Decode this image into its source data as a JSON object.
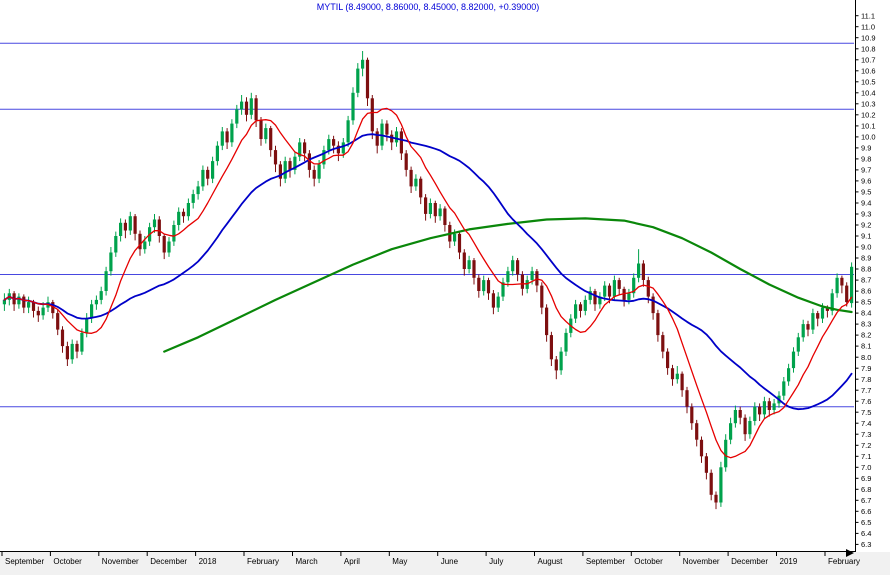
{
  "title": "MYTIL (8.49000, 8.86000, 8.45000, 8.82000, +0.39000)",
  "chart_data": {
    "type": "candlestick",
    "symbol": "MYTIL",
    "quote": {
      "open": 8.49,
      "high": 8.86,
      "low": 8.45,
      "close": 8.82,
      "change": 0.39
    },
    "y_axis": {
      "min": 6.3,
      "max": 11.1,
      "step": 0.1,
      "side": "right"
    },
    "x_axis": {
      "ticks": [
        {
          "index": 0,
          "label": "September"
        },
        {
          "index": 10,
          "label": "October"
        },
        {
          "index": 20,
          "label": "November"
        },
        {
          "index": 30,
          "label": "December"
        },
        {
          "index": 40,
          "label": "2018"
        },
        {
          "index": 50,
          "label": "February"
        },
        {
          "index": 60,
          "label": "March"
        },
        {
          "index": 70,
          "label": "April"
        },
        {
          "index": 80,
          "label": "May"
        },
        {
          "index": 90,
          "label": "June"
        },
        {
          "index": 100,
          "label": "July"
        },
        {
          "index": 110,
          "label": "August"
        },
        {
          "index": 120,
          "label": "September"
        },
        {
          "index": 130,
          "label": "October"
        },
        {
          "index": 140,
          "label": "November"
        },
        {
          "index": 150,
          "label": "December"
        },
        {
          "index": 160,
          "label": "2019"
        },
        {
          "index": 170,
          "label": "February"
        }
      ]
    },
    "horizontal_lines": {
      "color": "#4848e0",
      "values": [
        10.85,
        10.25,
        8.75,
        7.55
      ]
    },
    "colors": {
      "up": "#00a24c",
      "down": "#7d0f10",
      "background": "#ffffff",
      "axis": "#000000",
      "title": "#0000d8"
    },
    "grid": "off",
    "legend": "none",
    "candles": {
      "columns": [
        "open",
        "high",
        "low",
        "close"
      ],
      "rows": [
        [
          8.48,
          8.58,
          8.42,
          8.52
        ],
        [
          8.52,
          8.62,
          8.47,
          8.58
        ],
        [
          8.58,
          8.6,
          8.42,
          8.48
        ],
        [
          8.48,
          8.58,
          8.44,
          8.55
        ],
        [
          8.55,
          8.57,
          8.4,
          8.45
        ],
        [
          8.45,
          8.55,
          8.4,
          8.5
        ],
        [
          8.5,
          8.52,
          8.36,
          8.42
        ],
        [
          8.42,
          8.46,
          8.32,
          8.38
        ],
        [
          8.38,
          8.5,
          8.34,
          8.45
        ],
        [
          8.45,
          8.55,
          8.41,
          8.5
        ],
        [
          8.5,
          8.52,
          8.35,
          8.4
        ],
        [
          8.4,
          8.43,
          8.2,
          8.25
        ],
        [
          8.25,
          8.28,
          8.04,
          8.1
        ],
        [
          8.1,
          8.14,
          7.92,
          7.98
        ],
        [
          7.98,
          8.16,
          7.94,
          8.12
        ],
        [
          8.12,
          8.15,
          7.99,
          8.05
        ],
        [
          8.05,
          8.26,
          8.02,
          8.22
        ],
        [
          8.22,
          8.4,
          8.18,
          8.35
        ],
        [
          8.35,
          8.52,
          8.31,
          8.48
        ],
        [
          8.48,
          8.56,
          8.43,
          8.52
        ],
        [
          8.52,
          8.64,
          8.48,
          8.6
        ],
        [
          8.6,
          8.82,
          8.56,
          8.78
        ],
        [
          8.78,
          9.0,
          8.74,
          8.95
        ],
        [
          8.95,
          9.14,
          8.91,
          9.1
        ],
        [
          9.1,
          9.26,
          9.05,
          9.22
        ],
        [
          9.22,
          9.25,
          9.08,
          9.15
        ],
        [
          9.15,
          9.32,
          9.11,
          9.28
        ],
        [
          9.28,
          9.3,
          9.06,
          9.12
        ],
        [
          9.12,
          9.15,
          8.92,
          8.98
        ],
        [
          8.98,
          9.1,
          8.94,
          9.05
        ],
        [
          9.05,
          9.22,
          9.01,
          9.18
        ],
        [
          9.18,
          9.3,
          9.13,
          9.25
        ],
        [
          9.25,
          9.28,
          9.04,
          9.1
        ],
        [
          9.1,
          9.12,
          8.89,
          8.95
        ],
        [
          8.95,
          9.09,
          8.91,
          9.05
        ],
        [
          9.05,
          9.24,
          9.01,
          9.2
        ],
        [
          9.2,
          9.36,
          9.15,
          9.32
        ],
        [
          9.32,
          9.35,
          9.22,
          9.28
        ],
        [
          9.28,
          9.44,
          9.24,
          9.4
        ],
        [
          9.4,
          9.52,
          9.35,
          9.48
        ],
        [
          9.48,
          9.6,
          9.43,
          9.55
        ],
        [
          9.55,
          9.74,
          9.51,
          9.7
        ],
        [
          9.7,
          9.73,
          9.56,
          9.62
        ],
        [
          9.62,
          9.82,
          9.58,
          9.78
        ],
        [
          9.78,
          9.96,
          9.74,
          9.92
        ],
        [
          9.92,
          10.09,
          9.88,
          10.05
        ],
        [
          10.05,
          10.08,
          9.89,
          9.95
        ],
        [
          9.95,
          10.16,
          9.91,
          10.12
        ],
        [
          10.12,
          10.29,
          10.08,
          10.25
        ],
        [
          10.25,
          10.38,
          10.2,
          10.32
        ],
        [
          10.32,
          10.36,
          10.14,
          10.2
        ],
        [
          10.2,
          10.4,
          10.16,
          10.35
        ],
        [
          10.35,
          10.38,
          10.09,
          10.15
        ],
        [
          10.15,
          10.18,
          9.92,
          9.98
        ],
        [
          9.98,
          10.12,
          9.94,
          10.08
        ],
        [
          10.08,
          10.1,
          9.82,
          9.88
        ],
        [
          9.88,
          9.92,
          9.68,
          9.75
        ],
        [
          9.75,
          9.78,
          9.55,
          9.62
        ],
        [
          9.62,
          9.82,
          9.58,
          9.78
        ],
        [
          9.78,
          9.81,
          9.63,
          9.7
        ],
        [
          9.7,
          9.86,
          9.66,
          9.82
        ],
        [
          9.82,
          9.99,
          9.78,
          9.95
        ],
        [
          9.95,
          9.98,
          9.78,
          9.85
        ],
        [
          9.85,
          9.88,
          9.63,
          9.7
        ],
        [
          9.7,
          9.74,
          9.55,
          9.62
        ],
        [
          9.62,
          9.79,
          9.58,
          9.75
        ],
        [
          9.75,
          9.92,
          9.71,
          9.88
        ],
        [
          9.88,
          10.02,
          9.84,
          9.98
        ],
        [
          9.98,
          10.01,
          9.85,
          9.92
        ],
        [
          9.92,
          9.96,
          9.78,
          9.85
        ],
        [
          9.85,
          9.99,
          9.81,
          9.95
        ],
        [
          9.95,
          10.19,
          9.91,
          10.15
        ],
        [
          10.15,
          10.45,
          10.11,
          10.4
        ],
        [
          10.4,
          10.67,
          10.36,
          10.62
        ],
        [
          10.62,
          10.78,
          10.55,
          10.7
        ],
        [
          10.7,
          10.72,
          10.28,
          10.35
        ],
        [
          10.35,
          10.38,
          9.98,
          10.05
        ],
        [
          10.05,
          10.08,
          9.85,
          9.92
        ],
        [
          9.92,
          10.16,
          9.88,
          10.12
        ],
        [
          10.12,
          10.15,
          9.96,
          10.02
        ],
        [
          10.02,
          10.06,
          9.88,
          9.95
        ],
        [
          9.95,
          10.09,
          9.91,
          10.05
        ],
        [
          10.05,
          10.08,
          9.79,
          9.85
        ],
        [
          9.85,
          9.88,
          9.64,
          9.7
        ],
        [
          9.7,
          9.73,
          9.49,
          9.55
        ],
        [
          9.55,
          9.66,
          9.51,
          9.62
        ],
        [
          9.62,
          9.64,
          9.39,
          9.45
        ],
        [
          9.45,
          9.48,
          9.24,
          9.3
        ],
        [
          9.3,
          9.44,
          9.26,
          9.4
        ],
        [
          9.4,
          9.42,
          9.22,
          9.28
        ],
        [
          9.28,
          9.39,
          9.24,
          9.35
        ],
        [
          9.35,
          9.37,
          9.14,
          9.2
        ],
        [
          9.2,
          9.23,
          8.99,
          9.05
        ],
        [
          9.05,
          9.16,
          9.01,
          9.12
        ],
        [
          9.12,
          9.14,
          8.89,
          8.95
        ],
        [
          8.95,
          8.98,
          8.74,
          8.8
        ],
        [
          8.8,
          8.92,
          8.76,
          8.88
        ],
        [
          8.88,
          8.9,
          8.66,
          8.72
        ],
        [
          8.72,
          8.75,
          8.54,
          8.6
        ],
        [
          8.6,
          8.74,
          8.56,
          8.7
        ],
        [
          8.7,
          8.72,
          8.52,
          8.58
        ],
        [
          8.58,
          8.61,
          8.39,
          8.45
        ],
        [
          8.45,
          8.59,
          8.41,
          8.55
        ],
        [
          8.55,
          8.72,
          8.51,
          8.68
        ],
        [
          8.68,
          8.82,
          8.64,
          8.78
        ],
        [
          8.78,
          8.92,
          8.74,
          8.88
        ],
        [
          8.88,
          8.9,
          8.69,
          8.75
        ],
        [
          8.75,
          8.78,
          8.56,
          8.62
        ],
        [
          8.62,
          8.74,
          8.58,
          8.7
        ],
        [
          8.7,
          8.82,
          8.66,
          8.78
        ],
        [
          8.78,
          8.8,
          8.59,
          8.65
        ],
        [
          8.65,
          8.68,
          8.39,
          8.45
        ],
        [
          8.45,
          8.48,
          8.14,
          8.2
        ],
        [
          8.2,
          8.23,
          7.92,
          7.98
        ],
        [
          7.98,
          8.01,
          7.8,
          7.88
        ],
        [
          7.88,
          8.09,
          7.84,
          8.05
        ],
        [
          8.05,
          8.26,
          8.01,
          8.22
        ],
        [
          8.22,
          8.39,
          8.18,
          8.35
        ],
        [
          8.35,
          8.52,
          8.31,
          8.48
        ],
        [
          8.48,
          8.5,
          8.36,
          8.42
        ],
        [
          8.42,
          8.56,
          8.38,
          8.52
        ],
        [
          8.52,
          8.64,
          8.48,
          8.6
        ],
        [
          8.6,
          8.62,
          8.42,
          8.48
        ],
        [
          8.48,
          8.59,
          8.44,
          8.55
        ],
        [
          8.55,
          8.69,
          8.51,
          8.65
        ],
        [
          8.65,
          8.67,
          8.49,
          8.55
        ],
        [
          8.55,
          8.74,
          8.51,
          8.7
        ],
        [
          8.7,
          8.72,
          8.56,
          8.62
        ],
        [
          8.62,
          8.64,
          8.46,
          8.52
        ],
        [
          8.52,
          8.62,
          8.48,
          8.58
        ],
        [
          8.58,
          8.76,
          8.54,
          8.72
        ],
        [
          8.72,
          8.98,
          8.68,
          8.85
        ],
        [
          8.85,
          8.88,
          8.64,
          8.7
        ],
        [
          8.7,
          8.73,
          8.49,
          8.55
        ],
        [
          8.55,
          8.58,
          8.34,
          8.4
        ],
        [
          8.4,
          8.43,
          8.14,
          8.2
        ],
        [
          8.2,
          8.23,
          7.99,
          8.05
        ],
        [
          8.05,
          8.08,
          7.84,
          7.9
        ],
        [
          7.9,
          7.93,
          7.74,
          7.8
        ],
        [
          7.8,
          7.92,
          7.76,
          7.85
        ],
        [
          7.85,
          7.87,
          7.64,
          7.7
        ],
        [
          7.7,
          7.73,
          7.49,
          7.55
        ],
        [
          7.55,
          7.58,
          7.34,
          7.4
        ],
        [
          7.4,
          7.43,
          7.19,
          7.25
        ],
        [
          7.25,
          7.28,
          7.04,
          7.1
        ],
        [
          7.1,
          7.13,
          6.89,
          6.95
        ],
        [
          6.95,
          6.98,
          6.7,
          6.75
        ],
        [
          6.75,
          6.78,
          6.62,
          6.68
        ],
        [
          6.68,
          7.05,
          6.64,
          7.0
        ],
        [
          7.0,
          7.3,
          6.96,
          7.25
        ],
        [
          7.25,
          7.45,
          7.21,
          7.4
        ],
        [
          7.4,
          7.56,
          7.36,
          7.52
        ],
        [
          7.52,
          7.55,
          7.39,
          7.45
        ],
        [
          7.45,
          7.48,
          7.24,
          7.3
        ],
        [
          7.3,
          7.46,
          7.26,
          7.42
        ],
        [
          7.42,
          7.59,
          7.38,
          7.55
        ],
        [
          7.55,
          7.58,
          7.42,
          7.48
        ],
        [
          7.48,
          7.64,
          7.44,
          7.6
        ],
        [
          7.6,
          7.63,
          7.46,
          7.52
        ],
        [
          7.52,
          7.62,
          7.48,
          7.58
        ],
        [
          7.58,
          7.69,
          7.54,
          7.65
        ],
        [
          7.65,
          7.82,
          7.61,
          7.78
        ],
        [
          7.78,
          7.94,
          7.74,
          7.9
        ],
        [
          7.9,
          8.09,
          7.86,
          8.05
        ],
        [
          8.05,
          8.22,
          8.01,
          8.18
        ],
        [
          8.18,
          8.34,
          8.14,
          8.3
        ],
        [
          8.3,
          8.33,
          8.19,
          8.25
        ],
        [
          8.25,
          8.44,
          8.21,
          8.4
        ],
        [
          8.4,
          8.42,
          8.28,
          8.35
        ],
        [
          8.35,
          8.49,
          8.31,
          8.45
        ],
        [
          8.45,
          8.47,
          8.36,
          8.42
        ],
        [
          8.42,
          8.62,
          8.38,
          8.58
        ],
        [
          8.58,
          8.76,
          8.54,
          8.72
        ],
        [
          8.72,
          8.74,
          8.58,
          8.65
        ],
        [
          8.65,
          8.68,
          8.46,
          8.5
        ],
        [
          8.49,
          8.86,
          8.45,
          8.82
        ]
      ]
    },
    "moving_averages": [
      {
        "name": "slow-ma-line",
        "color": "#0a870a",
        "width": 2.2,
        "type": "anchors",
        "points": [
          [
            33,
            8.05
          ],
          [
            40,
            8.18
          ],
          [
            48,
            8.35
          ],
          [
            56,
            8.52
          ],
          [
            64,
            8.68
          ],
          [
            72,
            8.84
          ],
          [
            80,
            8.98
          ],
          [
            88,
            9.08
          ],
          [
            96,
            9.16
          ],
          [
            104,
            9.21
          ],
          [
            112,
            9.25
          ],
          [
            120,
            9.26
          ],
          [
            128,
            9.24
          ],
          [
            134,
            9.18
          ],
          [
            140,
            9.08
          ],
          [
            146,
            8.95
          ],
          [
            152,
            8.8
          ],
          [
            158,
            8.66
          ],
          [
            164,
            8.54
          ],
          [
            169,
            8.46
          ],
          [
            172,
            8.43
          ],
          [
            175,
            8.41
          ]
        ]
      },
      {
        "name": "medium-ma-line",
        "color": "#0000c8",
        "width": 1.8,
        "type": "sma",
        "period": 30
      },
      {
        "name": "fast-ma-line",
        "color": "#e60000",
        "width": 1.3,
        "type": "sma",
        "period": 9
      }
    ]
  }
}
